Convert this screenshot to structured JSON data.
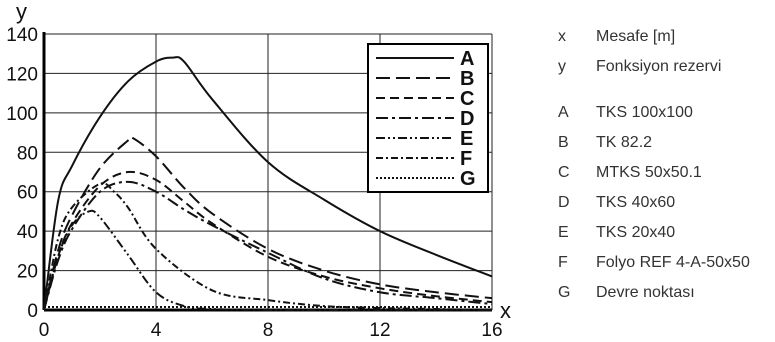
{
  "chart_data": {
    "type": "line",
    "xlabel": "x",
    "ylabel": "y",
    "xlim": [
      0,
      16
    ],
    "ylim": [
      0,
      140
    ],
    "xticks": [
      0,
      4,
      8,
      12,
      16
    ],
    "yticks": [
      0,
      20,
      40,
      60,
      80,
      100,
      120,
      140
    ],
    "grid": true,
    "legend_position": "top-right",
    "series": [
      {
        "name": "A",
        "dash": "solid",
        "x": [
          0,
          0.5,
          1,
          2,
          3,
          4,
          4.6,
          5,
          6,
          8,
          10,
          12,
          14,
          16
        ],
        "y": [
          0,
          55,
          73,
          98,
          116,
          126,
          128,
          126,
          107,
          75,
          56,
          40,
          28,
          17
        ]
      },
      {
        "name": "B",
        "dash": "long",
        "x": [
          0,
          0.5,
          1,
          2,
          3,
          3.2,
          4,
          5,
          6,
          8,
          10,
          12,
          14,
          16
        ],
        "y": [
          0,
          30,
          48,
          72,
          86,
          87,
          78,
          62,
          49,
          31,
          20,
          13,
          9,
          6
        ]
      },
      {
        "name": "C",
        "dash": "medium",
        "x": [
          0,
          0.5,
          1,
          2,
          3,
          4,
          5,
          6,
          8,
          10,
          12,
          14,
          16
        ],
        "y": [
          0,
          27,
          44,
          63,
          70,
          66,
          55,
          44,
          27,
          17,
          11,
          7,
          4
        ]
      },
      {
        "name": "D",
        "dash": "dashdot",
        "x": [
          0,
          0.5,
          1,
          2,
          3,
          4,
          5,
          6,
          8,
          10,
          12,
          14,
          16
        ],
        "y": [
          0,
          25,
          41,
          60,
          65,
          60,
          51,
          43,
          29,
          16,
          9,
          6,
          3
        ]
      },
      {
        "name": "E",
        "dash": "dashdotdot",
        "x": [
          0,
          0.5,
          1,
          1.6,
          2,
          3,
          4,
          5,
          6,
          8,
          10,
          12,
          16
        ],
        "y": [
          0,
          27,
          43,
          50,
          47,
          28,
          9,
          2,
          0.5,
          0,
          0,
          0,
          0
        ]
      },
      {
        "name": "F",
        "dash": "dashdot2",
        "x": [
          0,
          0.5,
          1,
          2,
          2.5,
          3,
          4,
          6,
          8,
          10,
          12,
          14,
          16
        ],
        "y": [
          0,
          36,
          52,
          64,
          60,
          52,
          31,
          10,
          5,
          2,
          1,
          0.5,
          0
        ]
      },
      {
        "name": "G",
        "dash": "dotted",
        "x": [
          0,
          16
        ],
        "y": [
          1.5,
          1.5
        ]
      }
    ]
  },
  "key": [
    {
      "code": "x",
      "text": "Mesafe [m]"
    },
    {
      "code": "y",
      "text": "Fonksiyon rezervi"
    },
    {
      "code": "A",
      "text": "TKS 100x100"
    },
    {
      "code": "B",
      "text": "TK 82.2"
    },
    {
      "code": "C",
      "text": "MTKS 50x50.1"
    },
    {
      "code": "D",
      "text": "TKS 40x60"
    },
    {
      "code": "E",
      "text": "TKS 20x40"
    },
    {
      "code": "F",
      "text": "Folyo REF 4-A-50x50"
    },
    {
      "code": "G",
      "text": "Devre noktası"
    }
  ]
}
